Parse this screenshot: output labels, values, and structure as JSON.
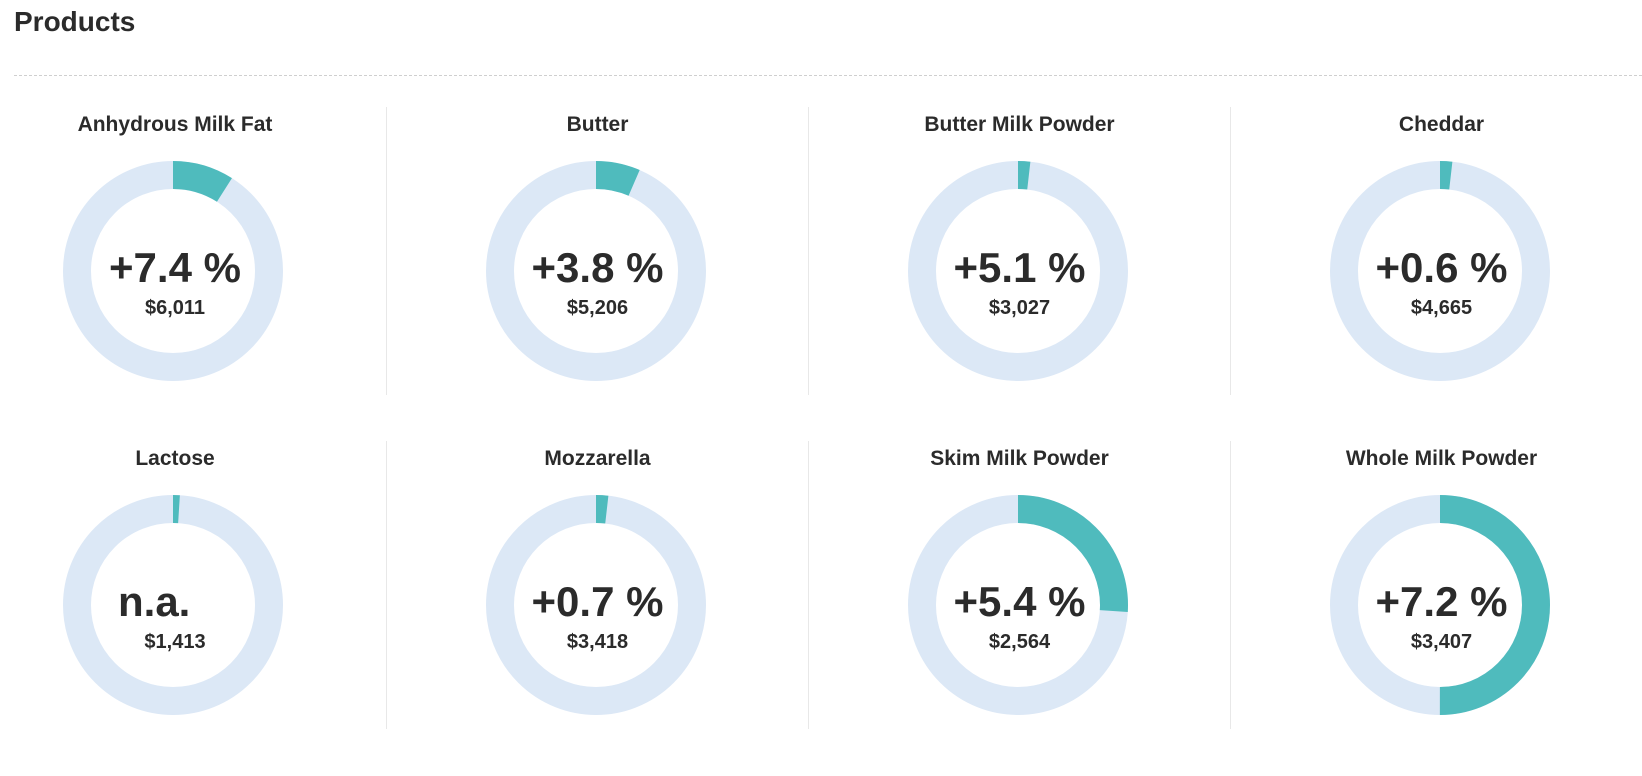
{
  "header": {
    "title": "Products"
  },
  "colors": {
    "track": "#dce8f6",
    "fill": "#4fbbbd"
  },
  "products": [
    {
      "name": "Anhydrous Milk Fat",
      "change": "+7.4 %",
      "price": "$6,011",
      "fraction": 0.09
    },
    {
      "name": "Butter",
      "change": "+3.8 %",
      "price": "$5,206",
      "fraction": 0.065
    },
    {
      "name": "Butter Milk Powder",
      "change": "+5.1 %",
      "price": "$3,027",
      "fraction": 0.018
    },
    {
      "name": "Cheddar",
      "change": "+0.6 %",
      "price": "$4,665",
      "fraction": 0.018
    },
    {
      "name": "Lactose",
      "change": "n.a.",
      "price": "$1,413",
      "fraction": 0.01
    },
    {
      "name": "Mozzarella",
      "change": "+0.7 %",
      "price": "$3,418",
      "fraction": 0.018
    },
    {
      "name": "Skim Milk Powder",
      "change": "+5.4 %",
      "price": "$2,564",
      "fraction": 0.26
    },
    {
      "name": "Whole Milk Powder",
      "change": "+7.2 %",
      "price": "$3,407",
      "fraction": 0.5
    }
  ]
}
